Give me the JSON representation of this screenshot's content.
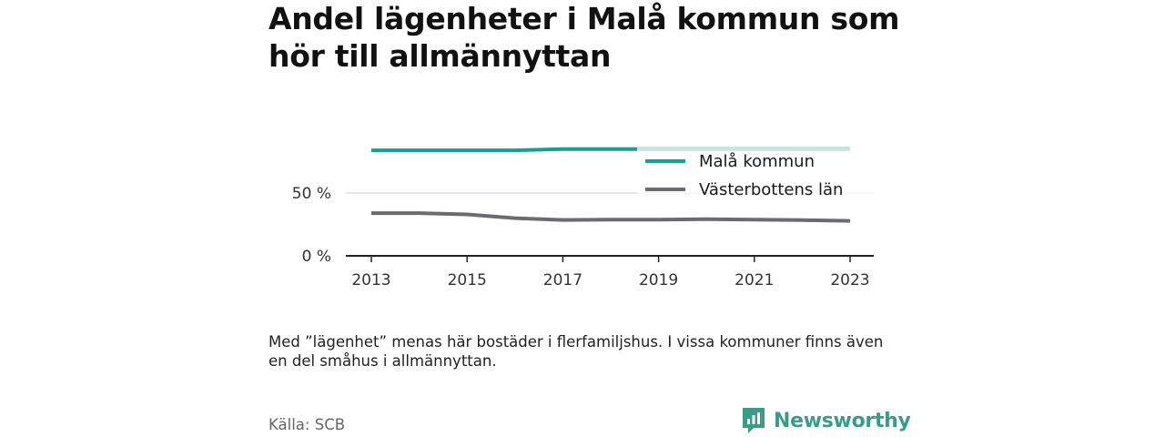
{
  "title": "Andel lägenheter i Malå kommun som hör till allmännyttan",
  "note": "Med ”lägenhet” menas här bostäder i flerfamiljshus. I vissa kommuner finns även en del småhus i allmännyttan.",
  "source": "Källa: SCB",
  "brand": {
    "name": "Newsworthy",
    "icon": "newsworthy-logo-icon",
    "color": "#3a9b8b"
  },
  "chart_data": {
    "type": "line",
    "x": [
      2013,
      2014,
      2015,
      2016,
      2017,
      2018,
      2019,
      2020,
      2021,
      2022,
      2023
    ],
    "xticks": [
      "2013",
      "2015",
      "2017",
      "2019",
      "2021",
      "2023"
    ],
    "yticks": [
      "0 %",
      "50 %"
    ],
    "ylim": [
      0,
      100
    ],
    "grid": true,
    "legend_position": "top-right",
    "series": [
      {
        "name": "Malå kommun",
        "color": "#14a095",
        "values": [
          84,
          84,
          84,
          84,
          85,
          85,
          85,
          85,
          85,
          85,
          85
        ]
      },
      {
        "name": "Västerbottens län",
        "color": "#6b6b72",
        "values": [
          34,
          34,
          33,
          30,
          28.5,
          28.8,
          28.8,
          29.2,
          28.8,
          28.4,
          27.8
        ]
      }
    ]
  }
}
